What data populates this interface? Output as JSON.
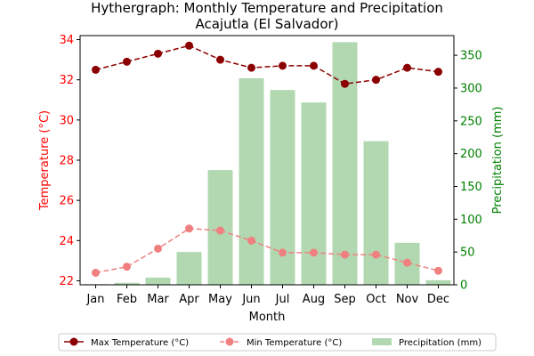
{
  "chart_data": {
    "type": "bar+line",
    "title_line1": "Hythergraph: Monthly Temperature and Precipitation",
    "title_line2": "Acajutla (El Salvador)",
    "xlabel": "Month",
    "ylabel_left": "Temperature (°C)",
    "ylabel_right": "Precipitation (mm)",
    "categories": [
      "Jan",
      "Feb",
      "Mar",
      "Apr",
      "May",
      "Jun",
      "Jul",
      "Aug",
      "Sep",
      "Oct",
      "Nov",
      "Dec"
    ],
    "ylim_left": [
      21.8,
      34.2
    ],
    "ylim_right": [
      0,
      380
    ],
    "yticks_left": [
      22,
      24,
      26,
      28,
      30,
      32,
      34
    ],
    "yticks_right": [
      0,
      50,
      100,
      150,
      200,
      250,
      300,
      350
    ],
    "grid": false,
    "legend_position": "bottom",
    "series": [
      {
        "name": "Max Temperature (°C)",
        "kind": "line",
        "axis": "left",
        "color": "#8b0000",
        "values": [
          32.5,
          32.9,
          33.3,
          33.7,
          33.0,
          32.6,
          32.7,
          32.7,
          31.8,
          32.0,
          32.6,
          32.4
        ]
      },
      {
        "name": "Min Temperature (°C)",
        "kind": "line",
        "axis": "left",
        "color": "#f08080",
        "values": [
          22.4,
          22.7,
          23.6,
          24.6,
          24.5,
          24.0,
          23.4,
          23.4,
          23.3,
          23.3,
          22.9,
          22.5
        ]
      },
      {
        "name": "Precipitation (mm)",
        "kind": "bar",
        "axis": "right",
        "color": "#b1d8b0",
        "values": [
          1,
          3,
          11,
          50,
          175,
          315,
          297,
          278,
          370,
          219,
          64,
          7
        ]
      }
    ],
    "colors": {
      "left_axis": "#ff0000",
      "right_axis": "#008000"
    }
  }
}
